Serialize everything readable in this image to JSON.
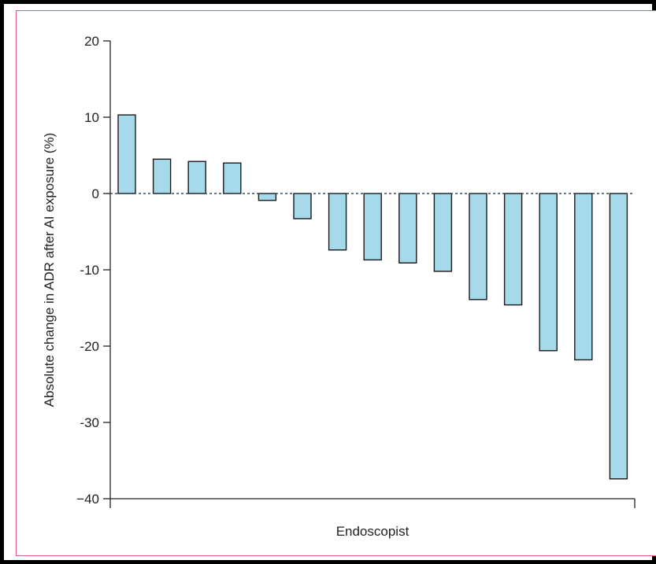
{
  "chart_data": {
    "type": "bar",
    "title": "",
    "xlabel": "Endoscopist",
    "ylabel": "Absolute change in ADR after AI exposure (%)",
    "ylim": [
      -40,
      20
    ],
    "yticks": [
      20,
      10,
      0,
      -10,
      -20,
      -30,
      -40
    ],
    "ytick_labels": [
      "20",
      "10",
      "0",
      "-10",
      "-20",
      "-30",
      "−40"
    ],
    "grid": false,
    "zero_line": "dashed",
    "bar_color": "#a6d9ea",
    "bar_edge_color": "#1a1a1a",
    "values": [
      10.3,
      4.5,
      4.2,
      4.0,
      -0.9,
      -3.3,
      -7.4,
      -8.7,
      -9.1,
      -10.2,
      -13.9,
      -14.6,
      -20.6,
      -21.8,
      -37.4
    ]
  }
}
